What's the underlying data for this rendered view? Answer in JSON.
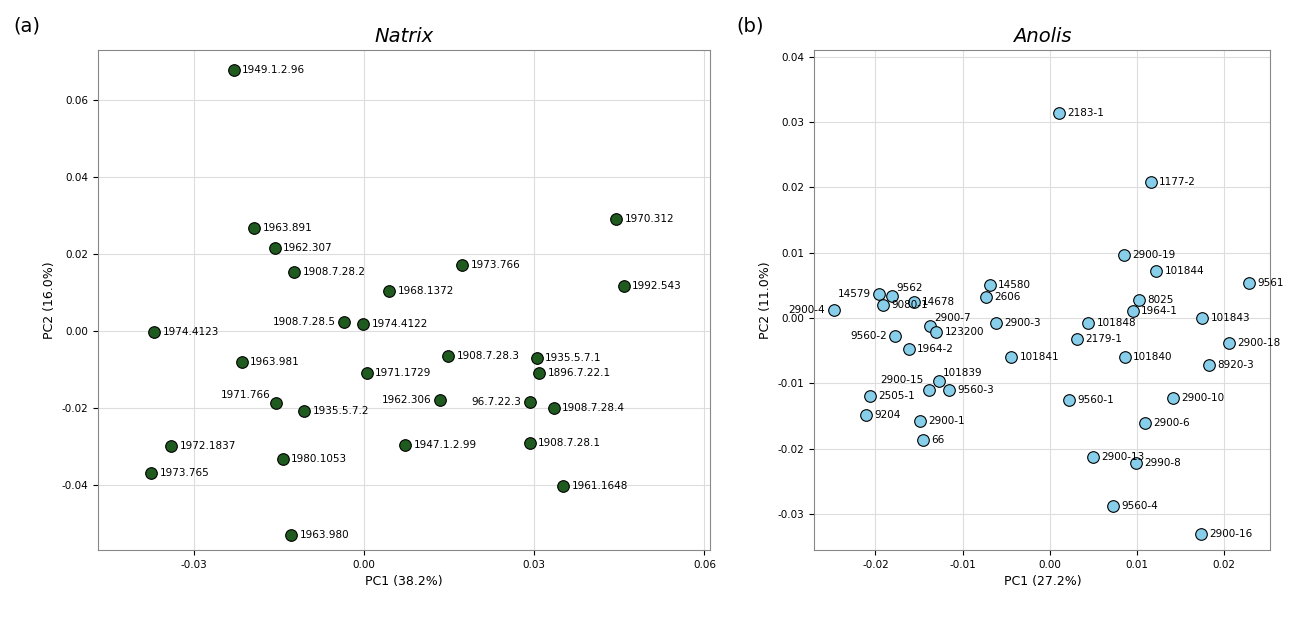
{
  "chart_data": [
    {
      "type": "scatter",
      "title": "Natrix",
      "annotations": [
        "(a)"
      ],
      "x_label": "PC1 (38.2%)",
      "y_label": "PC2 (16.0%)",
      "color": "#1f5a1f",
      "marker": "o",
      "grid": true,
      "point_labels": [
        "1949.1.2.96",
        "1963.891",
        "1962.307",
        "1908.7.28.2",
        "1973.766",
        "1970.312",
        "1992.543",
        "1968.1372",
        "1908.7.28.5",
        "1974.4122",
        "1974.4123",
        "1963.981",
        "1908.7.28.3",
        "1935.5.7.1",
        "1896.7.22.1",
        "1971.1729",
        "1971.766",
        "1935.5.7.2",
        "1962.306",
        "96.7.22.3",
        "1908.7.28.4",
        "1972.1837",
        "1947.1.2.99",
        "1908.7.28.1",
        "1973.765",
        "1980.1053",
        "1961.1648",
        "1963.980"
      ],
      "x": [
        -0.023,
        -0.0194,
        -0.0158,
        -0.0123,
        0.0173,
        0.0444,
        0.0458,
        0.0044,
        -0.0036,
        -0.0002,
        -0.037,
        -0.0216,
        0.0148,
        0.0304,
        0.0309,
        0.0004,
        -0.0156,
        -0.0106,
        0.0133,
        0.0292,
        0.0334,
        -0.034,
        0.0072,
        0.0292,
        -0.0376,
        -0.0144,
        0.0351,
        -0.0129
      ],
      "values": [
        0.0677,
        0.0266,
        0.0214,
        0.0154,
        0.0171,
        0.0291,
        0.0117,
        0.0103,
        0.0023,
        0.0017,
        -0.0003,
        -0.008,
        -0.0066,
        -0.0071,
        -0.0109,
        -0.0111,
        -0.0189,
        -0.0209,
        -0.018,
        -0.0186,
        -0.02,
        -0.03,
        -0.0297,
        -0.0291,
        -0.0371,
        -0.0334,
        -0.0403,
        -0.0531
      ],
      "xlim": [
        -0.047,
        0.061
      ],
      "ylim": [
        -0.057,
        0.073
      ],
      "xticks": [
        -0.03,
        {
          "value": 0,
          "label": "0.00"
        },
        0.03,
        0.06
      ],
      "yticks": [
        -0.04,
        -0.02,
        {
          "value": 0,
          "label": "0.00"
        },
        0.02,
        0.04,
        0.06
      ]
    },
    {
      "type": "scatter",
      "title": "Anolis",
      "annotations": [
        "(b)"
      ],
      "x_label": "PC1 (27.2%)",
      "y_label": "PC2 (11.0%)",
      "color": "#87ceeb",
      "marker": "o",
      "grid": true,
      "point_labels": [
        "2183-1",
        "1177-2",
        "2900-19",
        "101844",
        "9561",
        "14579",
        "9562",
        "14580",
        "2606",
        "14678",
        "9080-1",
        "2900-4",
        "2900-7",
        "123200",
        "9560-2",
        "1964-2",
        "2900-3",
        "8025",
        "1964-1",
        "101843",
        "101848",
        "2179-1",
        "2900-18",
        "101841",
        "101840",
        "8920-3",
        "101839",
        "2900-15",
        "9560-3",
        "2505-1",
        "9560-1",
        "2900-10",
        "9204",
        "2900-1",
        "2900-6",
        "66",
        "2900-13",
        "2990-8",
        "9560-4",
        "2900-16"
      ],
      "x": [
        0.001,
        0.0116,
        0.0085,
        0.0122,
        0.0228,
        -0.0196,
        -0.0181,
        -0.0069,
        -0.0073,
        -0.0156,
        -0.0191,
        -0.0248,
        -0.0137,
        -0.013,
        -0.0177,
        -0.0162,
        -0.0062,
        0.0102,
        0.0095,
        0.0175,
        0.0044,
        0.0031,
        0.0205,
        -0.0044,
        0.0086,
        0.0183,
        -0.0127,
        -0.0138,
        -0.0116,
        -0.0206,
        0.0022,
        0.0141,
        -0.0211,
        -0.0149,
        0.0109,
        -0.0146,
        0.0049,
        0.0099,
        0.0073,
        0.0173
      ],
      "values": [
        0.0313,
        0.0208,
        0.0097,
        0.0072,
        0.0053,
        0.0037,
        0.0033,
        0.005,
        0.0032,
        0.0025,
        0.002,
        0.0012,
        -0.0013,
        -0.0022,
        -0.0027,
        -0.0047,
        -0.0007,
        0.0027,
        0.001,
        0.0,
        -0.0008,
        -0.0032,
        -0.0038,
        -0.006,
        -0.006,
        -0.0072,
        -0.0097,
        -0.011,
        -0.011,
        -0.012,
        -0.0125,
        -0.0123,
        -0.0148,
        -0.0158,
        -0.016,
        -0.0187,
        -0.0212,
        -0.0222,
        -0.0288,
        -0.033
      ],
      "xlim": [
        -0.027,
        0.0253
      ],
      "ylim": [
        -0.0355,
        0.041
      ],
      "xticks": [
        -0.02,
        -0.01,
        {
          "value": 0,
          "label": "0.00"
        },
        0.01,
        0.02
      ],
      "yticks": [
        -0.03,
        -0.02,
        -0.01,
        {
          "value": 0,
          "label": "0.00"
        },
        0.01,
        0.02,
        0.03,
        0.04
      ]
    }
  ]
}
